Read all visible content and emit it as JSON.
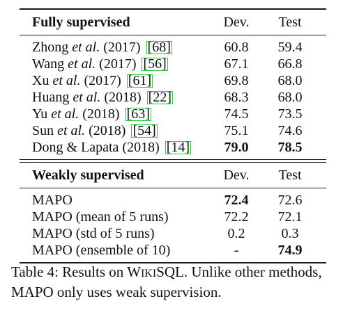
{
  "table": {
    "sections": [
      {
        "heading": "Fully supervised",
        "dev_header": "Dev.",
        "test_header": "Test",
        "rows": [
          {
            "pre": "Zhong ",
            "etal": "et al.",
            "post": " (2017) ",
            "ref": "[68]",
            "dev": "60.8",
            "test": "59.4",
            "dev_bold": false,
            "test_bold": false
          },
          {
            "pre": "Wang ",
            "etal": "et al.",
            "post": " (2017) ",
            "ref": "[56]",
            "dev": "67.1",
            "test": "66.8",
            "dev_bold": false,
            "test_bold": false
          },
          {
            "pre": "Xu ",
            "etal": "et al.",
            "post": " (2017) ",
            "ref": "[61]",
            "dev": "69.8",
            "test": "68.0",
            "dev_bold": false,
            "test_bold": false
          },
          {
            "pre": "Huang ",
            "etal": "et al.",
            "post": " (2018) ",
            "ref": "[22]",
            "dev": "68.3",
            "test": "68.0",
            "dev_bold": false,
            "test_bold": false
          },
          {
            "pre": "Yu ",
            "etal": "et al.",
            "post": " (2018) ",
            "ref": "[63]",
            "dev": "74.5",
            "test": "73.5",
            "dev_bold": false,
            "test_bold": false
          },
          {
            "pre": "Sun ",
            "etal": "et al.",
            "post": " (2018) ",
            "ref": "[54]",
            "dev": "75.1",
            "test": "74.6",
            "dev_bold": false,
            "test_bold": false
          },
          {
            "pre": "Dong & Lapata (2018) ",
            "etal": "",
            "post": "",
            "ref": "[14]",
            "dev": "79.0",
            "test": "78.5",
            "dev_bold": true,
            "test_bold": true
          }
        ]
      },
      {
        "heading": "Weakly supervised",
        "dev_header": "Dev.",
        "test_header": "Test",
        "rows": [
          {
            "pre": "MAPO",
            "etal": "",
            "post": "",
            "ref": "",
            "dev": "72.4",
            "test": "72.6",
            "dev_bold": true,
            "test_bold": false
          },
          {
            "pre": "MAPO (mean of 5 runs)",
            "etal": "",
            "post": "",
            "ref": "",
            "dev": "72.2",
            "test": "72.1",
            "dev_bold": false,
            "test_bold": false
          },
          {
            "pre": "MAPO (std of 5 runs)",
            "etal": "",
            "post": "",
            "ref": "",
            "dev": "0.2",
            "test": "0.3",
            "dev_bold": false,
            "test_bold": false
          },
          {
            "pre": "MAPO (ensemble of 10)",
            "etal": "",
            "post": "",
            "ref": "",
            "dev": "-",
            "test": "74.9",
            "dev_bold": false,
            "test_bold": true
          }
        ]
      }
    ]
  },
  "caption": {
    "label": "Table 4:",
    "text_before": " Results on ",
    "dataset_cap1": "W",
    "dataset_small1": "IKI",
    "dataset_cap2": "SQL",
    "text_after": ". Unlike other methods, MAPO only uses weak supervision."
  }
}
